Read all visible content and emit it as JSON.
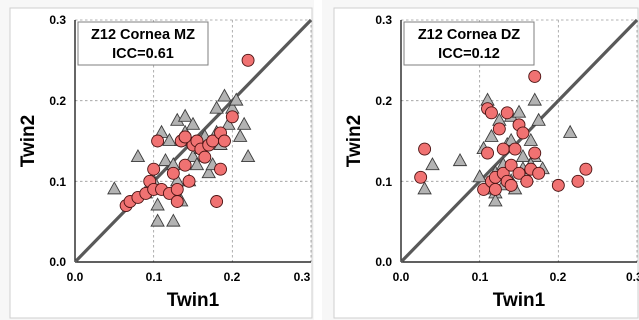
{
  "chart_data": [
    {
      "type": "scatter",
      "title": "Z12 Cornea MZ",
      "subtitle": "ICC=0.61",
      "xlabel": "Twin1",
      "ylabel": "Twin2",
      "xlim": [
        0.0,
        0.3
      ],
      "ylim": [
        0.0,
        0.3
      ],
      "xticks": [
        "0.0",
        "0.1",
        "0.2",
        "0.3"
      ],
      "yticks": [
        "0.0",
        "0.1",
        "0.2",
        "0.3"
      ],
      "grid": true,
      "identity_line": true,
      "colors": {
        "circle": "#f07272",
        "triangle": "#b3b3b3",
        "line": "#595959"
      },
      "series": [
        {
          "marker": "triangle",
          "x": [
            0.05,
            0.08,
            0.09,
            0.095,
            0.1,
            0.105,
            0.11,
            0.115,
            0.12,
            0.125,
            0.13,
            0.13,
            0.135,
            0.135,
            0.14,
            0.14,
            0.145,
            0.15,
            0.15,
            0.155,
            0.16,
            0.165,
            0.17,
            0.175,
            0.18,
            0.18,
            0.185,
            0.19,
            0.195,
            0.2,
            0.205,
            0.21,
            0.215,
            0.22,
            0.105,
            0.125
          ],
          "y": [
            0.09,
            0.13,
            0.085,
            0.095,
            0.1,
            0.05,
            0.16,
            0.125,
            0.15,
            0.12,
            0.175,
            0.1,
            0.15,
            0.075,
            0.18,
            0.16,
            0.1,
            0.17,
            0.13,
            0.12,
            0.14,
            0.155,
            0.11,
            0.12,
            0.19,
            0.16,
            0.145,
            0.205,
            0.17,
            0.19,
            0.2,
            0.155,
            0.17,
            0.13,
            0.07,
            0.05
          ]
        },
        {
          "marker": "circle",
          "x": [
            0.065,
            0.07,
            0.08,
            0.09,
            0.095,
            0.1,
            0.1,
            0.105,
            0.11,
            0.12,
            0.125,
            0.13,
            0.135,
            0.14,
            0.14,
            0.145,
            0.15,
            0.155,
            0.16,
            0.165,
            0.17,
            0.175,
            0.18,
            0.185,
            0.185,
            0.19,
            0.2,
            0.22,
            0.13,
            0.14
          ],
          "y": [
            0.07,
            0.075,
            0.08,
            0.085,
            0.1,
            0.09,
            0.115,
            0.15,
            0.09,
            0.085,
            0.11,
            0.09,
            0.15,
            0.155,
            0.12,
            0.1,
            0.145,
            0.15,
            0.14,
            0.13,
            0.145,
            0.15,
            0.075,
            0.115,
            0.16,
            0.15,
            0.18,
            0.25,
            0.075,
            0.155
          ]
        }
      ]
    },
    {
      "type": "scatter",
      "title": "Z12 Cornea DZ",
      "subtitle": "ICC=0.12",
      "xlabel": "Twin1",
      "ylabel": "Twin2",
      "xlim": [
        0.0,
        0.3
      ],
      "ylim": [
        0.0,
        0.3
      ],
      "xticks": [
        "0.0",
        "0.1",
        "0.2",
        "0.3"
      ],
      "yticks": [
        "0.0",
        "0.1",
        "0.2",
        "0.3"
      ],
      "grid": true,
      "identity_line": true,
      "colors": {
        "circle": "#f07272",
        "triangle": "#b3b3b3",
        "line": "#595959"
      },
      "series": [
        {
          "marker": "triangle",
          "x": [
            0.03,
            0.04,
            0.075,
            0.1,
            0.105,
            0.11,
            0.11,
            0.115,
            0.12,
            0.12,
            0.125,
            0.13,
            0.13,
            0.135,
            0.14,
            0.14,
            0.145,
            0.15,
            0.155,
            0.16,
            0.165,
            0.17,
            0.17,
            0.175,
            0.18,
            0.215,
            0.12,
            0.14,
            0.155,
            0.165
          ],
          "y": [
            0.09,
            0.12,
            0.125,
            0.105,
            0.14,
            0.2,
            0.09,
            0.155,
            0.085,
            0.11,
            0.175,
            0.12,
            0.095,
            0.145,
            0.18,
            0.1,
            0.09,
            0.185,
            0.13,
            0.105,
            0.15,
            0.2,
            0.13,
            0.175,
            0.115,
            0.16,
            0.075,
            0.15,
            0.115,
            0.12
          ]
        },
        {
          "marker": "circle",
          "x": [
            0.025,
            0.03,
            0.105,
            0.11,
            0.11,
            0.115,
            0.12,
            0.12,
            0.125,
            0.13,
            0.13,
            0.135,
            0.135,
            0.14,
            0.145,
            0.15,
            0.15,
            0.155,
            0.16,
            0.165,
            0.17,
            0.17,
            0.175,
            0.2,
            0.225,
            0.235,
            0.115,
            0.14
          ],
          "y": [
            0.105,
            0.14,
            0.09,
            0.135,
            0.19,
            0.1,
            0.09,
            0.105,
            0.165,
            0.11,
            0.14,
            0.1,
            0.185,
            0.12,
            0.14,
            0.11,
            0.17,
            0.16,
            0.1,
            0.115,
            0.23,
            0.135,
            0.11,
            0.095,
            0.1,
            0.115,
            0.185,
            0.095
          ]
        }
      ]
    }
  ]
}
